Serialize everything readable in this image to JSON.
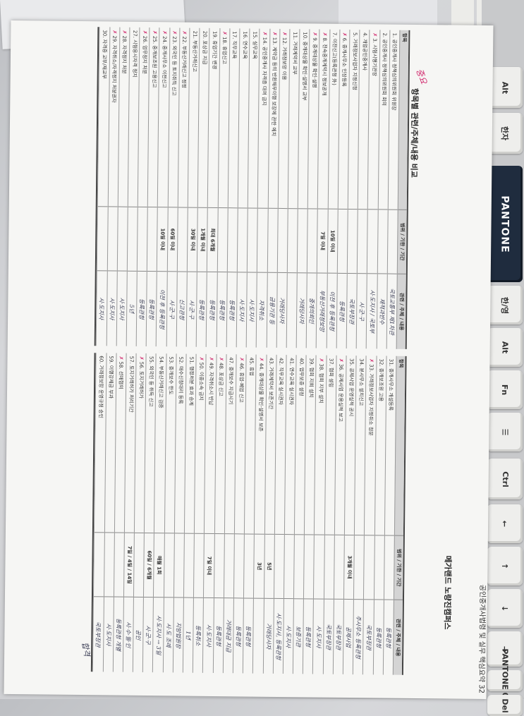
{
  "keyboard": {
    "keys": [
      "Alt",
      "한자",
      "PANTONE",
      "한/영",
      "Alt",
      "Fn",
      "☰",
      "Ctrl",
      "←",
      "↑",
      "↓",
      "→",
      "PANTONE 0 Ins",
      "Del"
    ]
  },
  "page": {
    "book_title": "공인중개사법령 및 실무 핵심요약 32",
    "brand": "메가랜드 노량진캠퍼스",
    "stamp": "중요",
    "table_title": "항목별 관련/주체/내용 비교",
    "headers": {
      "item": "항목",
      "range": "범위 / 기한 / 기간",
      "subject": "관련 / 주체 / 내용"
    },
    "signature": "합격"
  },
  "left_rows": [
    {
      "label": "1. 공인중개사 정책심의위원회 위원장",
      "range": "",
      "note": "국토교통부 제1차관",
      "red": false
    },
    {
      "label": "2. 공인중개사 정책심의위원회 회의",
      "range": "",
      "note": "재적과반수",
      "red": false
    },
    {
      "label": "3. 시험시행기관장",
      "range": "",
      "note": "시·도지사 / 국토부",
      "red": true
    },
    {
      "label": "4. 개업공인중개사",
      "range": "",
      "note": "시·군·구",
      "red": false
    },
    {
      "label": "5. 거래정보사업자 지정신청",
      "range": "",
      "note": "국토부장관",
      "red": false
    },
    {
      "label": "6. 중개사무소 인장등록",
      "range": "",
      "note": "등록관청",
      "red": true
    },
    {
      "label": "7. 이전신고(등록관청 外)",
      "range": "10일 이내",
      "note": "이전 후 등록관청",
      "red": false
    },
    {
      "label": "8. 전속중개계약시 정보공개",
      "range": "7일 이내",
      "note": "부동산거래정보망",
      "red": true
    },
    {
      "label": "9. 중개대상물 확인·설명",
      "range": "",
      "note": "중개의뢰인",
      "red": true
    },
    {
      "label": "10. 중개대상물 확인·설명서 교부",
      "range": "",
      "note": "거래당사자",
      "red": false
    },
    {
      "label": "11. 거래계약서 교부",
      "range": "",
      "note": "",
      "red": false
    },
    {
      "label": "12. 거래정보망 이용",
      "range": "",
      "note": "거래당사자",
      "red": true
    },
    {
      "label": "13. 계약금 등의 반환채무이행 보장에 관한 예치",
      "range": "",
      "note": "금융기관 등",
      "red": true
    },
    {
      "label": "14. 공인중개사 자격증 대여 금지",
      "range": "",
      "note": "자격취소",
      "red": true
    },
    {
      "label": "15. 실무교육",
      "range": "",
      "note": "시·도지사",
      "red": false
    },
    {
      "label": "16. 연수교육",
      "range": "",
      "note": "시·도지사",
      "red": false
    },
    {
      "label": "17. 직무교육",
      "range": "",
      "note": "등록관청",
      "red": false
    },
    {
      "label": "18. 휴업신고",
      "range": "",
      "note": "등록관청",
      "red": true
    },
    {
      "label": "19. 휴업기간 변경",
      "range": "최대 6개월",
      "note": "등록관청",
      "red": false
    },
    {
      "label": "20. 포상금 지급",
      "range": "1개월 이내",
      "note": "등록관청",
      "red": false
    },
    {
      "label": "21. 부동산거래신고",
      "range": "30일 이내",
      "note": "시·군·구",
      "red": false
    },
    {
      "label": "22. 부동산거래신고 정정",
      "range": "",
      "note": "신고관청",
      "red": true
    },
    {
      "label": "23. 외국인 등 토지취득 신고",
      "range": "60일 이내",
      "note": "시·군·구",
      "red": true
    },
    {
      "label": "24. 중개사무소 이전신고",
      "range": "10일 이내",
      "note": "이전 후 등록관청",
      "red": true
    },
    {
      "label": "25. 중개보조원 고용신고",
      "range": "",
      "note": "등록관청",
      "red": true
    },
    {
      "label": "26. 업무정지 처분",
      "range": "",
      "note": "등록관청",
      "red": true
    },
    {
      "label": "27. 시험응시자격 정지",
      "range": "",
      "note": "5년",
      "red": false
    },
    {
      "label": "28. 자격정지 처분",
      "range": "",
      "note": "시·도지사",
      "red": true
    },
    {
      "label": "29. 자격취소/자격정지 처분권자",
      "range": "",
      "note": "시·도지사",
      "red": true
    },
    {
      "label": "30. 자격증 교부/재교부",
      "range": "",
      "note": "시·도지사",
      "red": false
    }
  ],
  "right_rows": [
    {
      "label": "31. 중개사무소 개설등록",
      "range": "",
      "note": "등록관청",
      "red": false
    },
    {
      "label": "32. 중개보조원 고용",
      "range": "",
      "note": "등록관청",
      "red": false
    },
    {
      "label": "33. 거래정보사업자 지정취소 청문",
      "range": "",
      "note": "국토부장관",
      "red": true
    },
    {
      "label": "34. 분사무소 설치신고",
      "range": "",
      "note": "주사무소 등록관청",
      "red": false
    },
    {
      "label": "35. 공제사업 운영실적 공시",
      "range": "3개월 이내",
      "note": "공제사업",
      "red": false
    },
    {
      "label": "36. 공제사업 운용실적 보고",
      "range": "",
      "note": "국토부장관",
      "red": true
    },
    {
      "label": "37. 협회 설립",
      "range": "",
      "note": "국토부장관",
      "red": false
    },
    {
      "label": "38. 협회 지부 설치",
      "range": "",
      "note": "시·도지사",
      "red": true
    },
    {
      "label": "39. 협회 지회 설치",
      "range": "",
      "note": "등록관청",
      "red": false
    },
    {
      "label": "40. 업무보증 설정",
      "range": "",
      "note": "보증기관",
      "red": false
    },
    {
      "label": "41. 연수교육 실시권자",
      "range": "",
      "note": "시·도지사",
      "red": false
    },
    {
      "label": "42. 직무교육 실시권자",
      "range": "",
      "note": "시·도지사, 등록관청",
      "red": false
    },
    {
      "label": "43. 거래계약서 보존기간",
      "range": "5년",
      "note": "거래당사자",
      "red": false
    },
    {
      "label": "44. 중개대상물 확인·설명서 보존",
      "range": "3년",
      "note": "",
      "red": true
    },
    {
      "label": "45. 휴업",
      "range": "",
      "note": "등록관청",
      "red": false
    },
    {
      "label": "46. 휴업·폐업 신고",
      "range": "",
      "note": "등록관청",
      "red": true
    },
    {
      "label": "47. 중개보수 지급시기",
      "range": "",
      "note": "거래대금 지급",
      "red": false
    },
    {
      "label": "48. 포상금 신고",
      "range": "",
      "note": "등록관청",
      "red": true
    },
    {
      "label": "49. 자격취소시 반납",
      "range": "7일 이내",
      "note": "시·도지사",
      "red": true
    },
    {
      "label": "50. 이중소속 금지",
      "range": "",
      "note": "등록취소",
      "red": true
    },
    {
      "label": "51. 행정처분 효과 승계",
      "range": "",
      "note": "1년",
      "red": false
    },
    {
      "label": "52. 매수신청대리 등록",
      "range": "",
      "note": "지방법원장",
      "red": false
    },
    {
      "label": "53. 중개보수 한도",
      "range": "",
      "note": "시·도 조례",
      "red": false
    },
    {
      "label": "54. 부동산거래신고 검증",
      "range": "매월 1회",
      "note": "시·도지사 → 3일",
      "red": false
    },
    {
      "label": "55. 외국인 등 취득 신고",
      "range": "60일 / 6개월",
      "note": "시·군·구",
      "red": false
    },
    {
      "label": "56. 토지거래허가",
      "range": "",
      "note": "공인",
      "red": true
    },
    {
      "label": "57. 토지거래허가 처리기간",
      "range": "7일 / 4일 / 14일",
      "note": "시·수·월·인",
      "red": false
    },
    {
      "label": "58. 선매협의",
      "range": "",
      "note": "등록관청 개별",
      "red": true
    },
    {
      "label": "59. 이행강제금 부과",
      "range": "",
      "note": "시·도지사",
      "red": false
    },
    {
      "label": "60. 거래정보망 운영규정 승인",
      "range": "",
      "note": "국토부장관",
      "red": false
    }
  ]
}
